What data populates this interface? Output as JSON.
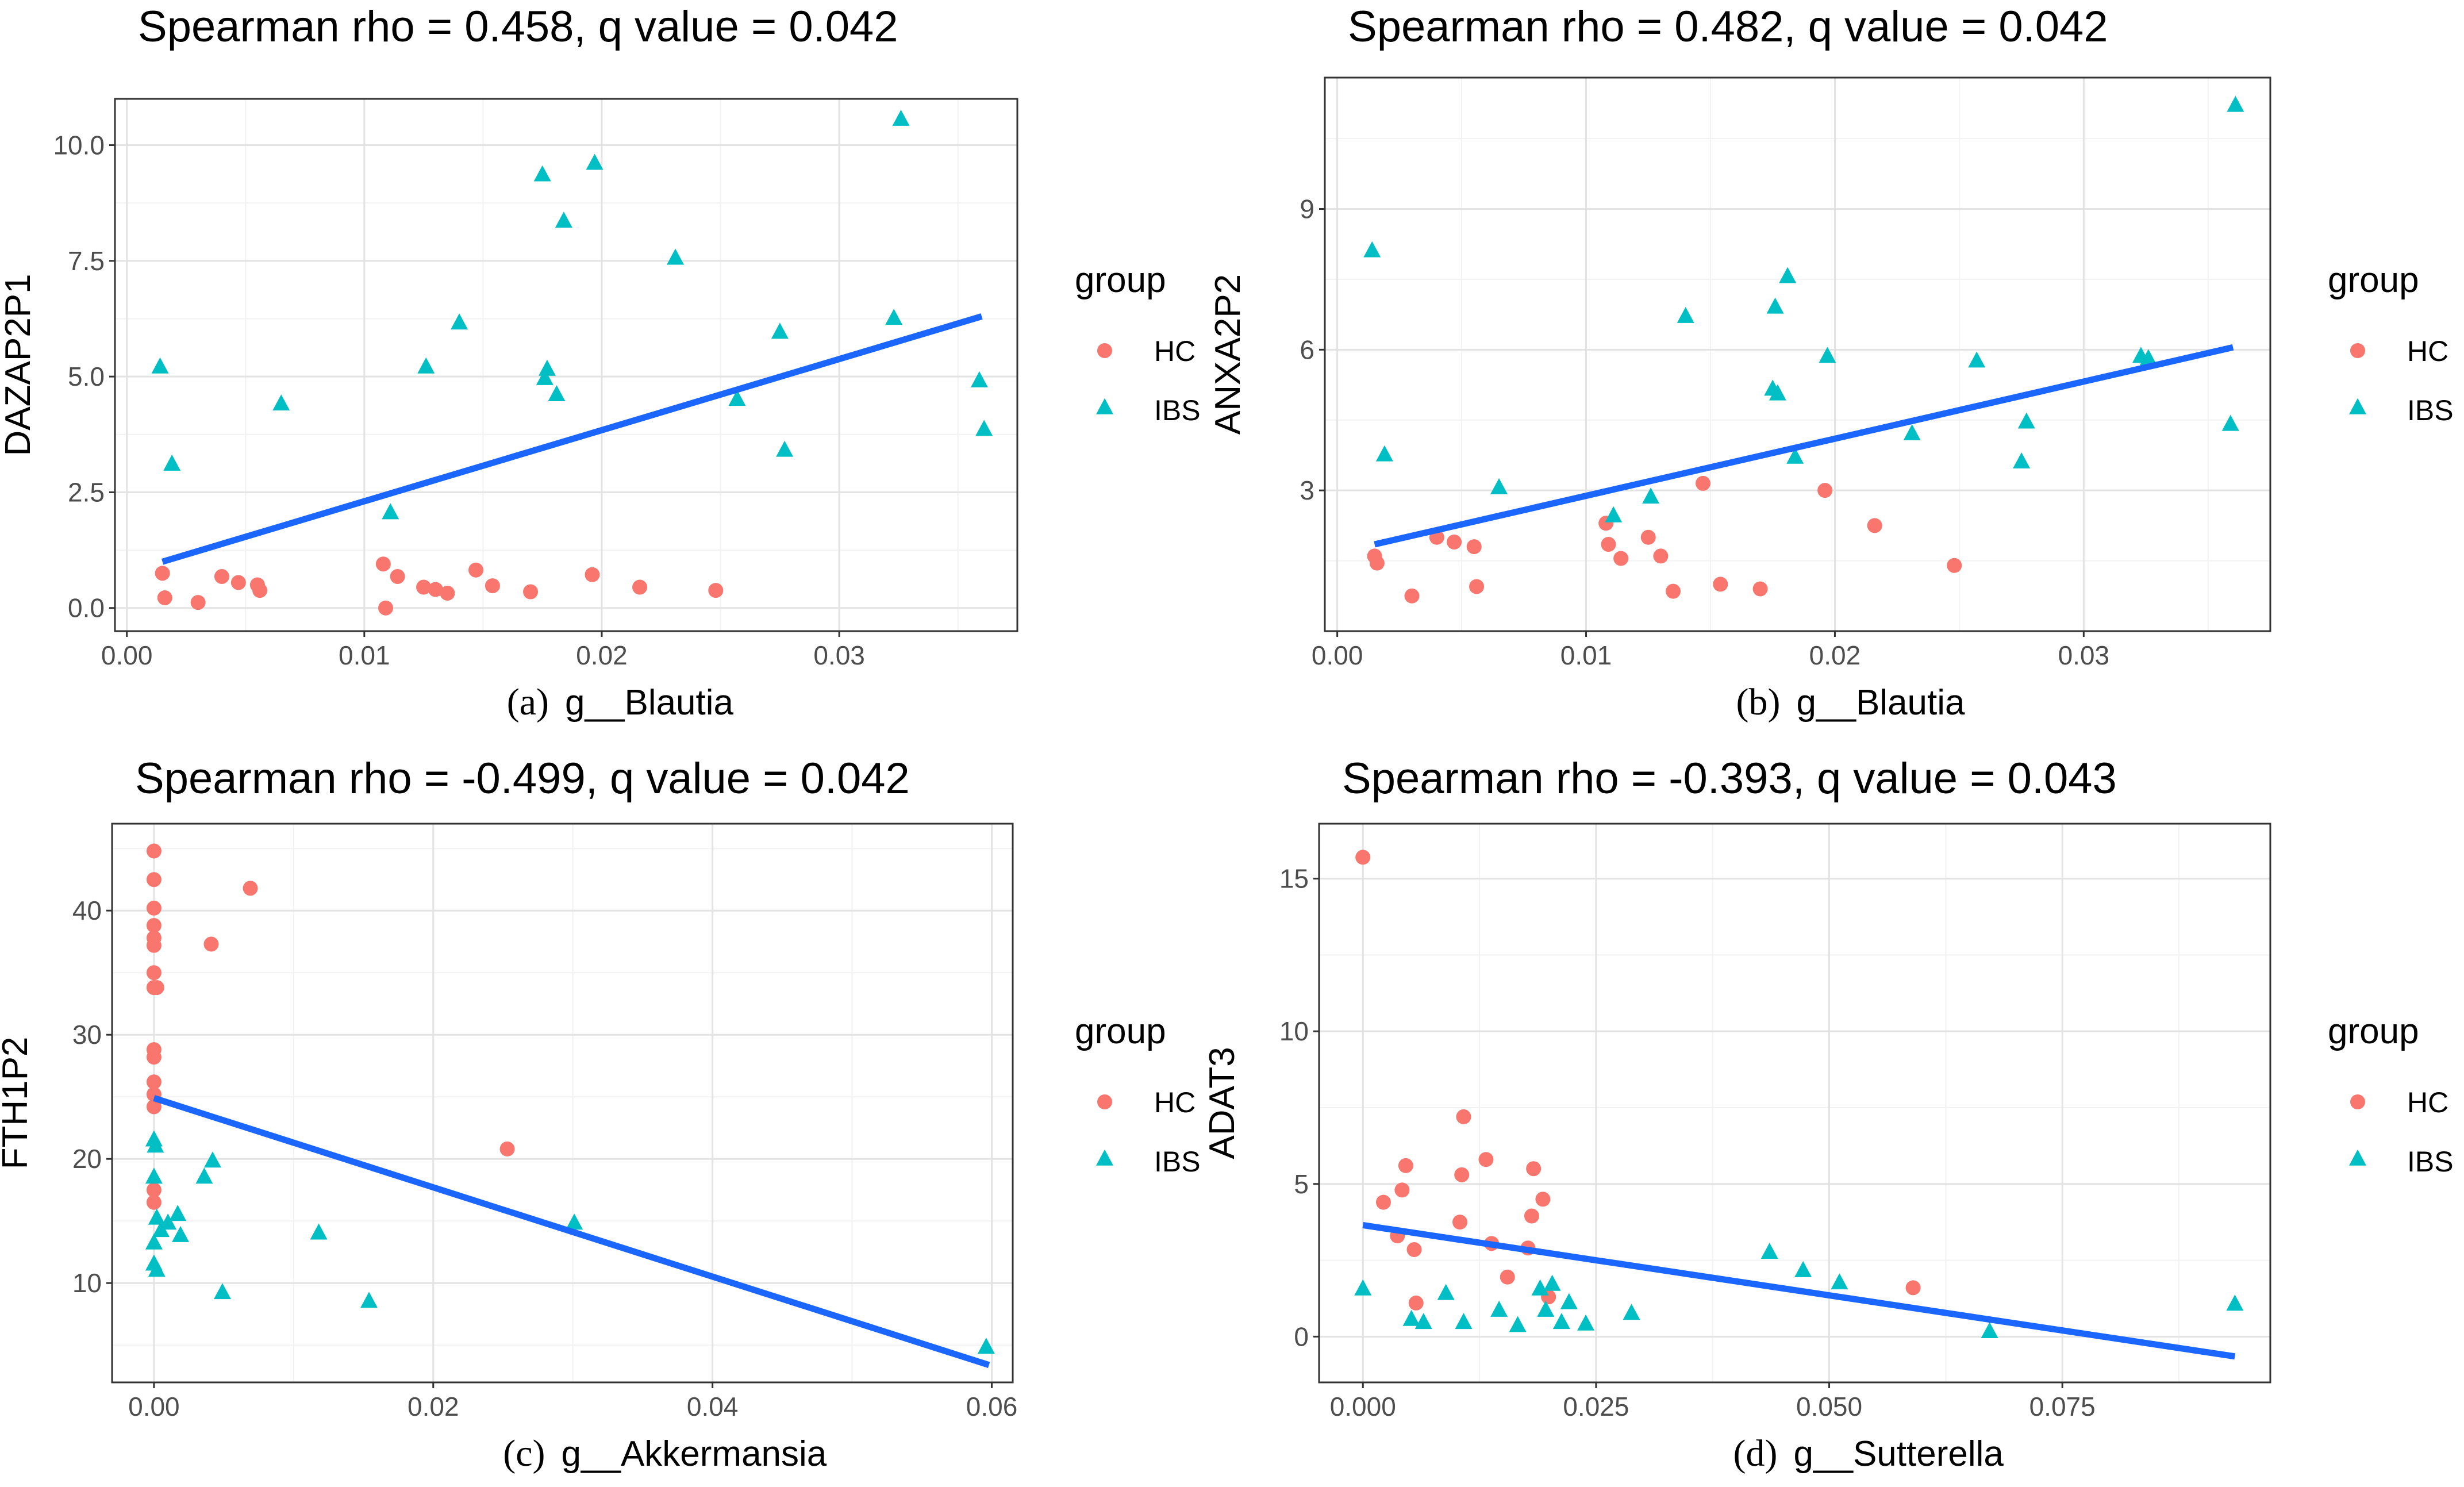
{
  "chart_data": [
    {
      "type": "scatter",
      "panel_letter": "(a)",
      "title": "Spearman rho = 0.458, q value = 0.042",
      "xlabel": "g__Blautia",
      "ylabel": "DAZAP2P1",
      "xlim": [
        -0.0005,
        0.0375
      ],
      "ylim": [
        -0.5,
        11.0
      ],
      "xticks": [
        0.0,
        0.01,
        0.02,
        0.03
      ],
      "xtick_labels": [
        "0.00",
        "0.01",
        "0.02",
        "0.03"
      ],
      "yticks": [
        0.0,
        2.5,
        5.0,
        7.5,
        10.0
      ],
      "ytick_labels": [
        "0.0",
        "2.5",
        "5.0",
        "7.5",
        "10.0"
      ],
      "legend": {
        "title": "group",
        "position": "right",
        "labels": [
          "HC",
          "IBS"
        ]
      },
      "series": [
        {
          "name": "HC",
          "marker": "circle",
          "color": "#F8766D",
          "x": [
            0.0015,
            0.0016,
            0.003,
            0.004,
            0.0047,
            0.0055,
            0.0056,
            0.0108,
            0.0109,
            0.0114,
            0.0125,
            0.013,
            0.0135,
            0.0147,
            0.0154,
            0.017,
            0.0196,
            0.0216,
            0.0248
          ],
          "y": [
            0.75,
            0.22,
            0.12,
            0.68,
            0.55,
            0.5,
            0.38,
            0.95,
            0.0,
            0.68,
            0.45,
            0.4,
            0.32,
            0.82,
            0.48,
            0.35,
            0.72,
            0.45,
            0.38
          ]
        },
        {
          "name": "IBS",
          "marker": "triangle",
          "color": "#00BFC4",
          "x": [
            0.0014,
            0.0019,
            0.0065,
            0.0111,
            0.0126,
            0.014,
            0.0175,
            0.0176,
            0.0177,
            0.0181,
            0.0184,
            0.0197,
            0.0231,
            0.0257,
            0.0275,
            0.0277,
            0.0323,
            0.0326,
            0.0359,
            0.0361
          ],
          "y": [
            5.2,
            3.1,
            4.4,
            2.05,
            5.2,
            6.15,
            9.35,
            4.95,
            5.15,
            4.6,
            8.35,
            9.6,
            7.55,
            4.5,
            5.95,
            3.4,
            6.25,
            10.55,
            4.9,
            3.85
          ]
        }
      ],
      "fit_line": {
        "x": [
          0.0015,
          0.036
        ],
        "y": [
          1.0,
          6.3
        ],
        "color": "#1A66FF"
      }
    },
    {
      "type": "scatter",
      "panel_letter": "(b)",
      "title": "Spearman rho = 0.482, q value = 0.042",
      "xlabel": "g__Blautia",
      "ylabel": "ANXA2P2",
      "xlim": [
        -0.0005,
        0.0375
      ],
      "ylim": [
        0.0,
        11.8
      ],
      "xticks": [
        0.0,
        0.01,
        0.02,
        0.03
      ],
      "xtick_labels": [
        "0.00",
        "0.01",
        "0.02",
        "0.03"
      ],
      "yticks": [
        3,
        6,
        9
      ],
      "ytick_labels": [
        "3",
        "6",
        "9"
      ],
      "legend": {
        "title": "group",
        "position": "right",
        "labels": [
          "HC",
          "IBS"
        ]
      },
      "series": [
        {
          "name": "HC",
          "marker": "circle",
          "color": "#F8766D",
          "x": [
            0.0015,
            0.0016,
            0.003,
            0.004,
            0.0047,
            0.0055,
            0.0056,
            0.0108,
            0.0109,
            0.0114,
            0.0125,
            0.013,
            0.0135,
            0.0147,
            0.0154,
            0.017,
            0.0196,
            0.0216,
            0.0248
          ],
          "y": [
            1.6,
            1.45,
            0.75,
            2.0,
            1.9,
            1.8,
            0.95,
            2.3,
            1.85,
            1.55,
            2.0,
            1.6,
            0.85,
            3.15,
            1.0,
            0.9,
            3.0,
            2.25,
            1.4
          ]
        },
        {
          "name": "IBS",
          "marker": "triangle",
          "color": "#00BFC4",
          "x": [
            0.0014,
            0.0019,
            0.0065,
            0.0111,
            0.0126,
            0.014,
            0.0175,
            0.0176,
            0.0177,
            0.0181,
            0.0184,
            0.0197,
            0.0231,
            0.0257,
            0.0275,
            0.0277,
            0.0323,
            0.0326,
            0.0359,
            0.0361
          ],
          "y": [
            8.1,
            3.75,
            3.05,
            2.45,
            2.85,
            6.7,
            5.15,
            6.9,
            5.05,
            7.55,
            3.7,
            5.85,
            4.2,
            5.75,
            3.6,
            4.45,
            5.85,
            5.8,
            4.4,
            11.2
          ]
        }
      ],
      "fit_line": {
        "x": [
          0.0015,
          0.036
        ],
        "y": [
          1.85,
          6.05
        ],
        "color": "#1A66FF"
      }
    },
    {
      "type": "scatter",
      "panel_letter": "(c)",
      "title": "Spearman rho = -0.499, q value = 0.042",
      "xlabel": "g__Akkermansia",
      "ylabel": "FTH1P2",
      "xlim": [
        -0.003,
        0.0615
      ],
      "ylim": [
        2.0,
        47.0
      ],
      "xticks": [
        0.0,
        0.02,
        0.04,
        0.06
      ],
      "xtick_labels": [
        "0.00",
        "0.02",
        "0.04",
        "0.06"
      ],
      "yticks": [
        10,
        20,
        30,
        40
      ],
      "ytick_labels": [
        "10",
        "20",
        "30",
        "40"
      ],
      "legend": {
        "title": "group",
        "position": "right",
        "labels": [
          "HC",
          "IBS"
        ]
      },
      "series": [
        {
          "name": "HC",
          "marker": "circle",
          "color": "#F8766D",
          "x": [
            0.0,
            0.0,
            0.0,
            0.0,
            0.0,
            0.0,
            0.0,
            0.0,
            0.0,
            0.0002,
            0.0,
            0.0,
            0.0,
            0.0,
            0.0,
            0.0,
            0.0,
            0.0041,
            0.0069,
            0.0253
          ],
          "y": [
            44.8,
            42.5,
            40.2,
            38.8,
            37.8,
            37.2,
            35.0,
            33.8,
            33.8,
            33.8,
            28.8,
            28.2,
            26.2,
            25.2,
            24.2,
            17.5,
            16.5,
            37.3,
            41.8,
            20.8
          ]
        },
        {
          "name": "IBS",
          "marker": "triangle",
          "color": "#00BFC4",
          "x": [
            0.0,
            0.0,
            0.0,
            0.0,
            0.0001,
            0.0002,
            0.0002,
            0.0005,
            0.001,
            0.0017,
            0.0019,
            0.0036,
            0.0042,
            0.0049,
            0.0118,
            0.0154,
            0.0301,
            0.0596
          ],
          "y": [
            21.5,
            18.5,
            13.2,
            11.5,
            21.0,
            11.0,
            15.2,
            14.2,
            14.8,
            15.5,
            13.8,
            18.5,
            19.8,
            9.2,
            14.0,
            8.5,
            14.8,
            4.8
          ]
        }
      ],
      "fit_line": {
        "x": [
          0.0,
          0.0598
        ],
        "y": [
          24.9,
          3.4
        ],
        "color": "#1A66FF"
      }
    },
    {
      "type": "scatter",
      "panel_letter": "(d)",
      "title": "Spearman rho = -0.393, q value = 0.043",
      "xlabel": "g__Sutterella",
      "ylabel": "ADAT3",
      "xlim": [
        -0.0047,
        0.0973
      ],
      "ylim": [
        -1.5,
        16.8
      ],
      "xticks": [
        0.0,
        0.025,
        0.05,
        0.075
      ],
      "xtick_labels": [
        "0.000",
        "0.025",
        "0.050",
        "0.075"
      ],
      "yticks": [
        0,
        5,
        10,
        15
      ],
      "ytick_labels": [
        "0",
        "5",
        "10",
        "15"
      ],
      "legend": {
        "title": "group",
        "position": "right",
        "labels": [
          "HC",
          "IBS"
        ]
      },
      "series": [
        {
          "name": "HC",
          "marker": "circle",
          "color": "#F8766D",
          "x": [
            0.0,
            0.0022,
            0.0037,
            0.0042,
            0.0046,
            0.0055,
            0.0057,
            0.0104,
            0.0106,
            0.0108,
            0.0132,
            0.0138,
            0.0155,
            0.0177,
            0.0181,
            0.0183,
            0.0193,
            0.0199,
            0.059
          ],
          "y": [
            15.7,
            4.4,
            3.3,
            4.8,
            5.6,
            2.85,
            1.1,
            3.75,
            5.3,
            7.2,
            5.8,
            3.05,
            1.95,
            2.9,
            3.95,
            5.5,
            4.5,
            1.3,
            1.6
          ]
        },
        {
          "name": "IBS",
          "marker": "triangle",
          "color": "#00BFC4",
          "x": [
            0.0,
            0.0052,
            0.0065,
            0.0089,
            0.0108,
            0.0146,
            0.0166,
            0.019,
            0.0196,
            0.0203,
            0.0213,
            0.0221,
            0.0239,
            0.0288,
            0.0436,
            0.0472,
            0.0511,
            0.0672,
            0.0935
          ],
          "y": [
            1.55,
            0.55,
            0.45,
            1.4,
            0.45,
            0.85,
            0.35,
            1.55,
            0.85,
            1.7,
            0.45,
            1.1,
            0.4,
            0.75,
            2.75,
            2.15,
            1.75,
            0.15,
            1.05
          ]
        }
      ],
      "fit_line": {
        "x": [
          0.0,
          0.0935
        ],
        "y": [
          3.65,
          -0.65
        ],
        "color": "#1A66FF"
      }
    }
  ]
}
